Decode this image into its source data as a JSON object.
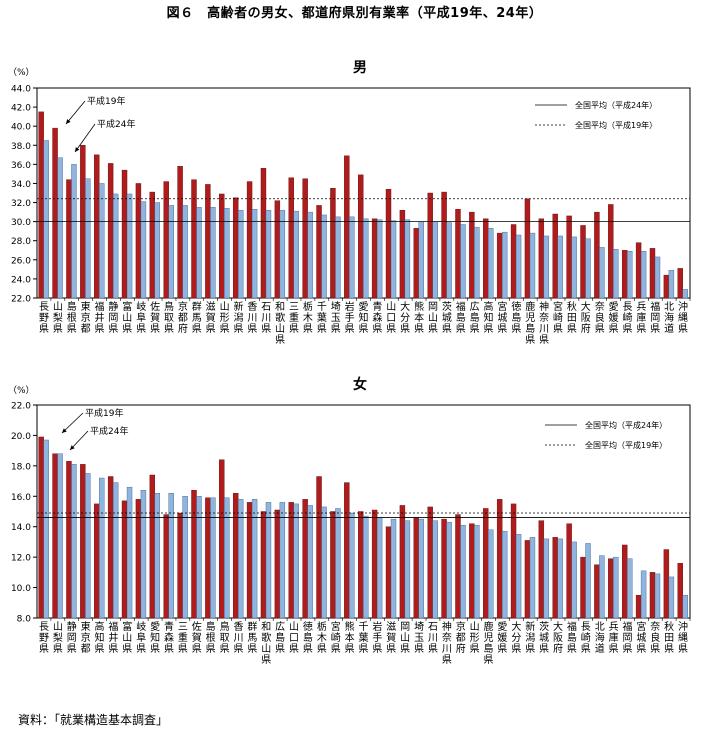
{
  "figure_title": "図６　高齢者の男女、都道府県別有業率（平成19年、24年）",
  "source": "資料：「就業構造基本調査」",
  "colors": {
    "h24": "#b01b1b",
    "h19": "#8fb4de"
  },
  "chart_data": [
    {
      "type": "bar",
      "title": "男",
      "unit_label": "（%）",
      "ylim": [
        22.0,
        44.0
      ],
      "yticks": [
        "22.0",
        "24.0",
        "26.0",
        "28.0",
        "30.0",
        "32.0",
        "34.0",
        "36.0",
        "38.0",
        "40.0",
        "42.0",
        "44.0"
      ],
      "categories": [
        "長野県",
        "山梨県",
        "島根県",
        "東京都",
        "福井県",
        "静岡県",
        "富山県",
        "岐阜県",
        "佐賀県",
        "鳥取県",
        "京都府",
        "群馬県",
        "滋賀県",
        "山形県",
        "新潟県",
        "香川県",
        "石川県",
        "和歌山県",
        "三重県",
        "栃木県",
        "千葉県",
        "埼玉県",
        "岩手県",
        "愛知県",
        "青森県",
        "山口県",
        "大分県",
        "熊本県",
        "岡山県",
        "茨城県",
        "福島県",
        "広島県",
        "高知県",
        "宮城県",
        "徳島県",
        "鹿児島県",
        "神奈川県",
        "宮崎県",
        "秋田県",
        "大阪府",
        "奈良県",
        "愛媛県",
        "長崎県",
        "兵庫県",
        "福岡県",
        "北海道",
        "沖縄県"
      ],
      "series": [
        {
          "name": "平成24年",
          "values": [
            41.5,
            39.8,
            34.4,
            38.0,
            37.0,
            36.1,
            35.4,
            34.0,
            33.1,
            34.2,
            35.8,
            34.4,
            33.9,
            32.9,
            32.5,
            34.2,
            35.6,
            32.2,
            34.6,
            34.5,
            31.7,
            33.5,
            36.9,
            34.9,
            30.3,
            33.4,
            31.2,
            29.3,
            33.0,
            33.1,
            31.3,
            31.0,
            30.3,
            28.8,
            29.7,
            32.4,
            30.3,
            30.8,
            30.6,
            29.6,
            31.0,
            31.8,
            27.0,
            27.8,
            27.2,
            24.4,
            25.1
          ]
        },
        {
          "name": "平成19年",
          "values": [
            38.5,
            36.7,
            36.0,
            34.5,
            34.0,
            32.9,
            32.9,
            32.1,
            32.0,
            31.7,
            31.7,
            31.5,
            31.5,
            31.4,
            31.2,
            31.3,
            31.2,
            31.2,
            31.1,
            31.0,
            30.7,
            30.5,
            30.5,
            30.3,
            30.2,
            30.1,
            30.2,
            30.0,
            30.0,
            29.9,
            29.7,
            29.4,
            29.3,
            28.9,
            28.6,
            28.8,
            28.5,
            28.5,
            28.4,
            28.2,
            27.3,
            27.1,
            26.9,
            26.9,
            26.3,
            24.9,
            22.9
          ]
        }
      ],
      "legend": {
        "position": "top-right",
        "entries": [
          "全国平均（平成24年）",
          "全国平均（平成19年）"
        ]
      },
      "reference_lines": [
        {
          "label": "全国平均（平成24年）",
          "value": 30.0,
          "style": "solid"
        },
        {
          "label": "全国平均（平成19年）",
          "value": 32.4,
          "style": "dotted"
        }
      ],
      "annotations": [
        "平成19年",
        "平成24年"
      ]
    },
    {
      "type": "bar",
      "title": "女",
      "unit_label": "（%）",
      "ylim": [
        8.0,
        22.0
      ],
      "yticks": [
        "8.0",
        "10.0",
        "12.0",
        "14.0",
        "16.0",
        "18.0",
        "20.0",
        "22.0"
      ],
      "categories": [
        "長野県",
        "山梨県",
        "静岡県",
        "東京都",
        "高知県",
        "福井県",
        "富山県",
        "岐阜県",
        "愛知県",
        "青森県",
        "三重県",
        "佐賀県",
        "島根県",
        "鳥取県",
        "香川県",
        "群馬県",
        "和歌山県",
        "広島県",
        "山口県",
        "徳島県",
        "栃木県",
        "宮崎県",
        "熊本県",
        "千葉県",
        "岩手県",
        "滋賀県",
        "岡山県",
        "埼玉県",
        "石川県",
        "神奈川県",
        "京都府",
        "山形県",
        "鹿児島県",
        "愛媛県",
        "大分県",
        "新潟県",
        "茨城県",
        "大阪府",
        "福島県",
        "長崎県",
        "北海道",
        "兵庫県",
        "福岡県",
        "宮城県",
        "奈良県",
        "秋田県",
        "沖縄県"
      ],
      "series": [
        {
          "name": "平成24年",
          "values": [
            19.9,
            18.8,
            18.3,
            18.1,
            15.5,
            17.3,
            15.7,
            15.8,
            17.4,
            14.8,
            14.9,
            16.4,
            15.9,
            18.4,
            16.2,
            15.6,
            15.0,
            15.1,
            15.6,
            15.8,
            17.3,
            15.0,
            16.9,
            15.0,
            15.1,
            14.0,
            15.4,
            14.6,
            15.3,
            14.5,
            14.8,
            14.2,
            15.2,
            15.8,
            15.5,
            13.1,
            14.4,
            13.3,
            14.2,
            12.0,
            11.5,
            11.9,
            12.8,
            9.5,
            11.0,
            12.5,
            11.6
          ]
        },
        {
          "name": "平成19年",
          "values": [
            19.7,
            18.8,
            18.1,
            17.5,
            17.2,
            16.9,
            16.6,
            16.4,
            16.2,
            16.2,
            16.0,
            16.0,
            15.9,
            15.9,
            15.8,
            15.8,
            15.6,
            15.6,
            15.5,
            15.4,
            15.3,
            15.2,
            14.9,
            14.7,
            14.6,
            14.5,
            14.4,
            14.5,
            14.4,
            14.3,
            14.1,
            14.1,
            13.8,
            13.7,
            13.5,
            13.3,
            13.2,
            13.2,
            13.0,
            12.9,
            12.1,
            12.0,
            11.9,
            11.1,
            10.9,
            10.7,
            9.5
          ]
        }
      ],
      "legend": {
        "position": "top-right",
        "entries": [
          "全国平均（平成24年）",
          "全国平均（平成19年）"
        ]
      },
      "reference_lines": [
        {
          "label": "全国平均（平成24年）",
          "value": 14.6,
          "style": "solid"
        },
        {
          "label": "全国平均（平成19年）",
          "value": 14.9,
          "style": "dotted"
        }
      ],
      "annotations": [
        "平成19年",
        "平成24年"
      ]
    }
  ]
}
